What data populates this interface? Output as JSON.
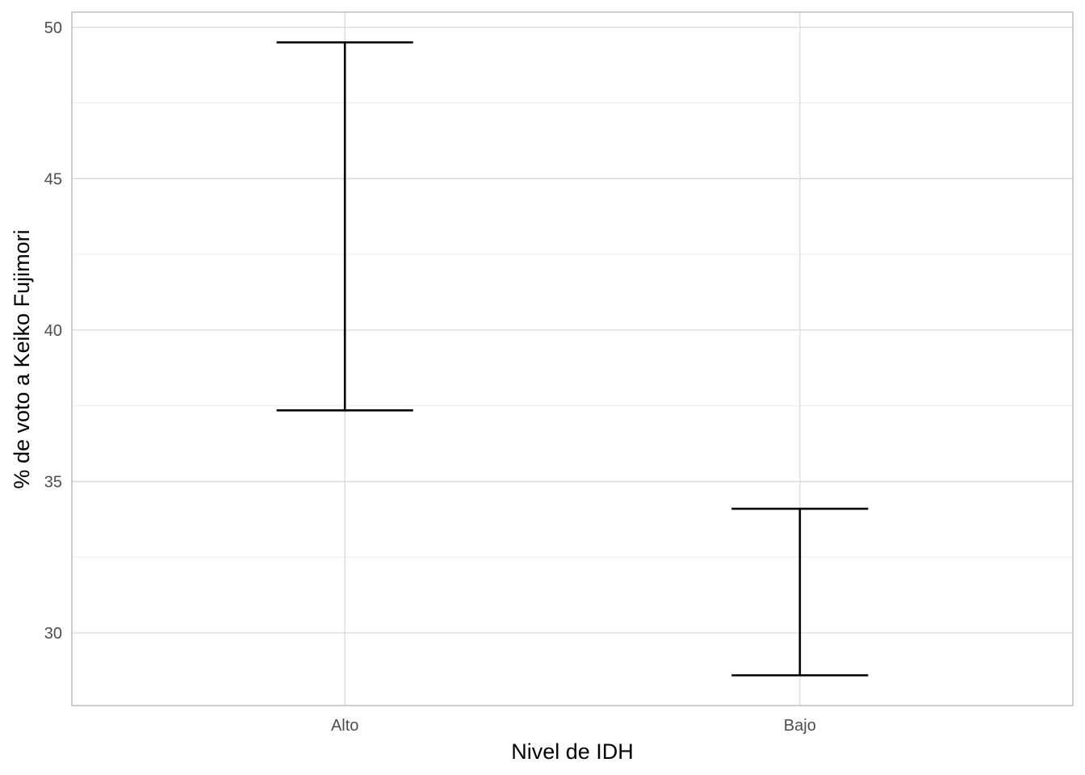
{
  "chart_data": {
    "type": "errorbar",
    "title": "",
    "xlabel": "Nivel de IDH",
    "ylabel": "% de voto a Keiko Fujimori",
    "categories": [
      "Alto",
      "Bajo"
    ],
    "lower": [
      37.35,
      28.6
    ],
    "upper": [
      49.5,
      34.1
    ],
    "ylim": [
      27.6,
      50.5
    ],
    "yticks": [
      30,
      35,
      40,
      45,
      50
    ],
    "yticks_minor": [
      32.5,
      37.5,
      42.5,
      47.5
    ],
    "ytick_labels": [
      "30",
      "35",
      "40",
      "45",
      "50"
    ],
    "grid": true,
    "legend": "none",
    "colors": {
      "bar": "#000000",
      "grid": "#d9d9d9",
      "axis_text": "#4d4d4d"
    }
  }
}
